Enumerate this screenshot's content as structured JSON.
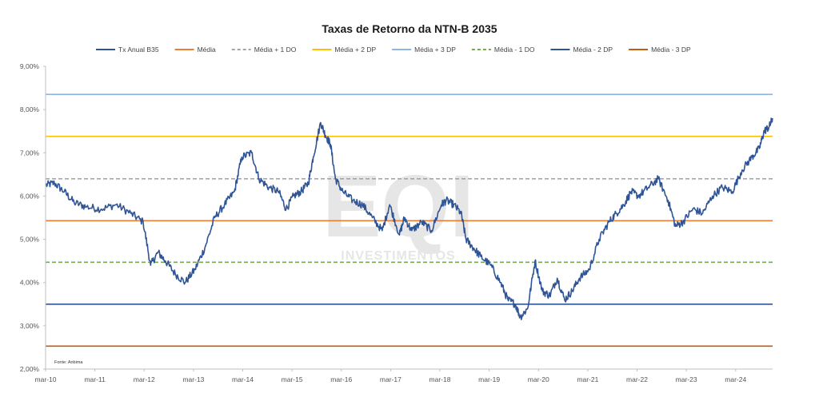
{
  "chart_data": {
    "type": "line",
    "title": "Taxas de Retorno da NTN-B 2035",
    "source": "Fonte: Anbima",
    "watermark": {
      "logo": "EQI",
      "subtitle": "INVESTIMENTOS"
    },
    "legend_position": "top",
    "grid": false,
    "y_axis": {
      "min": 2.0,
      "max": 9.0,
      "ticks": [
        2,
        3,
        4,
        5,
        6,
        7,
        8,
        9
      ],
      "tick_labels": [
        "2,00%",
        "3,00%",
        "4,00%",
        "5,00%",
        "6,00%",
        "7,00%",
        "8,00%",
        "9,00%"
      ]
    },
    "x_axis": {
      "min": 2010.17,
      "max": 2024.92,
      "ticks": [
        2010.17,
        2011.17,
        2012.17,
        2013.17,
        2014.17,
        2015.17,
        2016.17,
        2017.17,
        2018.17,
        2019.17,
        2020.17,
        2021.17,
        2022.17,
        2023.17,
        2024.17
      ],
      "tick_labels": [
        "mar-10",
        "mar-11",
        "mar-12",
        "mar-13",
        "mar-14",
        "mar-15",
        "mar-16",
        "mar-17",
        "mar-18",
        "mar-19",
        "mar-20",
        "mar-21",
        "mar-22",
        "mar-23",
        "mar-24"
      ]
    },
    "series": [
      {
        "name": "Tx Anual B35",
        "color": "#2f5597",
        "style": "solid",
        "x": [
          2010.17,
          2010.35,
          2010.55,
          2010.75,
          2011.0,
          2011.3,
          2011.6,
          2011.9,
          2012.15,
          2012.3,
          2012.45,
          2012.6,
          2012.8,
          2013.0,
          2013.2,
          2013.4,
          2013.6,
          2013.8,
          2014.0,
          2014.15,
          2014.35,
          2014.5,
          2014.7,
          2014.9,
          2015.05,
          2015.2,
          2015.35,
          2015.5,
          2015.6,
          2015.75,
          2015.85,
          2015.95,
          2016.05,
          2016.2,
          2016.4,
          2016.6,
          2016.8,
          2017.0,
          2017.15,
          2017.35,
          2017.45,
          2017.6,
          2017.8,
          2018.0,
          2018.2,
          2018.3,
          2018.45,
          2018.6,
          2018.7,
          2018.85,
          2019.0,
          2019.2,
          2019.4,
          2019.55,
          2019.7,
          2019.8,
          2019.95,
          2020.1,
          2020.25,
          2020.4,
          2020.55,
          2020.7,
          2020.85,
          2021.0,
          2021.2,
          2021.4,
          2021.6,
          2021.75,
          2021.9,
          2022.05,
          2022.2,
          2022.4,
          2022.6,
          2022.8,
          2022.95,
          2023.1,
          2023.3,
          2023.5,
          2023.7,
          2023.9,
          2024.1,
          2024.3,
          2024.5,
          2024.65,
          2024.75,
          2024.85,
          2024.92
        ],
        "y": [
          6.25,
          6.3,
          6.1,
          5.85,
          5.75,
          5.7,
          5.8,
          5.6,
          5.4,
          4.4,
          4.7,
          4.5,
          4.2,
          4.0,
          4.3,
          4.8,
          5.5,
          5.8,
          6.1,
          6.9,
          7.0,
          6.4,
          6.2,
          6.1,
          5.7,
          6.0,
          6.1,
          6.3,
          6.9,
          7.7,
          7.4,
          7.2,
          6.4,
          6.1,
          5.9,
          5.8,
          5.5,
          5.2,
          5.8,
          5.1,
          5.5,
          5.2,
          5.4,
          5.2,
          5.8,
          5.9,
          5.8,
          5.6,
          5.0,
          4.8,
          4.6,
          4.4,
          4.0,
          3.6,
          3.5,
          3.2,
          3.4,
          4.5,
          3.8,
          3.7,
          4.1,
          3.6,
          3.8,
          4.1,
          4.3,
          5.0,
          5.4,
          5.6,
          5.8,
          6.1,
          6.0,
          6.2,
          6.4,
          5.9,
          5.3,
          5.4,
          5.7,
          5.6,
          6.0,
          6.2,
          6.1,
          6.6,
          6.9,
          7.1,
          7.5,
          7.6,
          7.8
        ]
      },
      {
        "name": "Média",
        "color": "#ed7d31",
        "style": "solid",
        "value": 5.43
      },
      {
        "name": "Média + 1 DO",
        "color": "#a6a6a6",
        "style": "dashed",
        "value": 6.4
      },
      {
        "name": "Média + 2 DP",
        "color": "#ffc000",
        "style": "solid",
        "value": 7.38
      },
      {
        "name": "Média + 3 DP",
        "color": "#8eb4e3",
        "style": "solid",
        "value": 8.35
      },
      {
        "name": "Média - 1 DO",
        "color": "#70ad47",
        "style": "dashed",
        "value": 4.47
      },
      {
        "name": "Média - 2 DP",
        "color": "#2f5597",
        "style": "solid",
        "value": 3.5
      },
      {
        "name": "Média - 3 DP",
        "color": "#c55a11",
        "style": "solid",
        "value": 2.53
      }
    ]
  }
}
